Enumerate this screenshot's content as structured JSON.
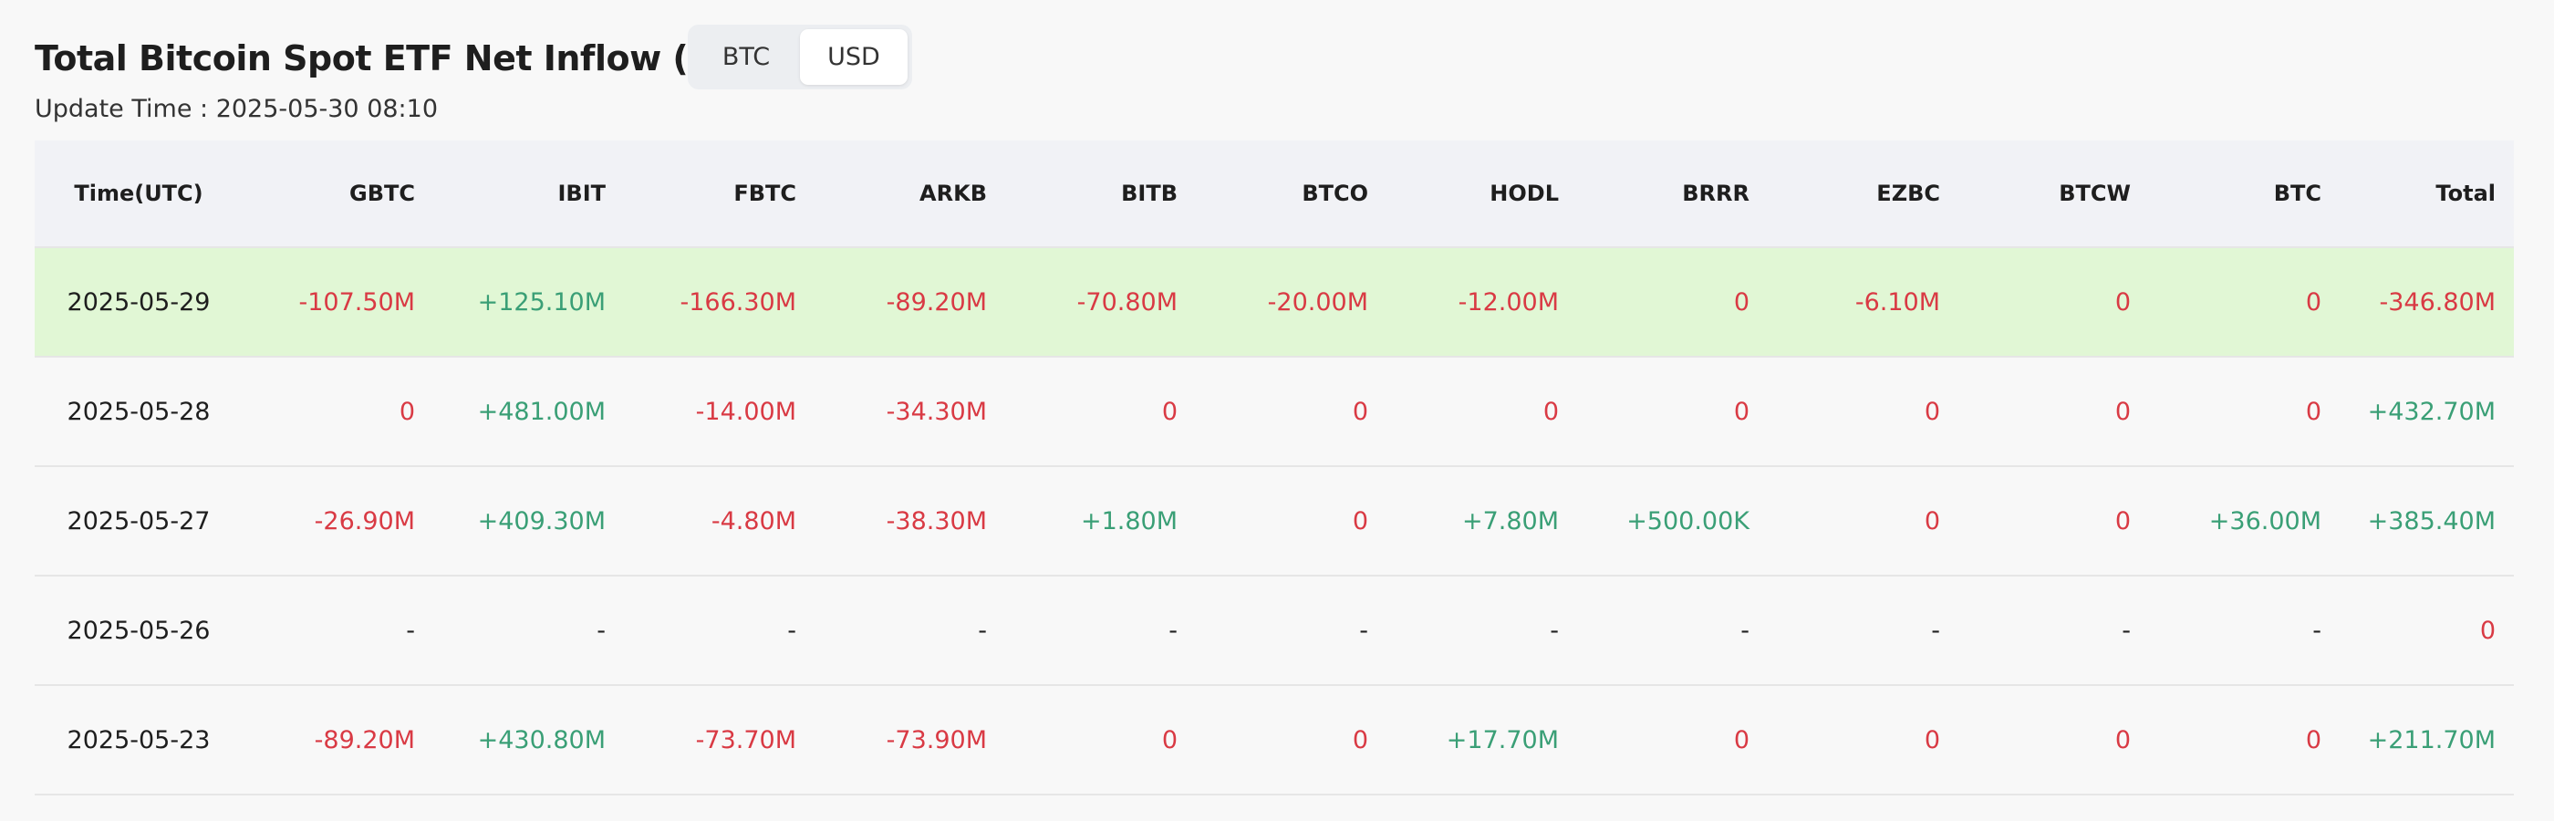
{
  "header": {
    "title": "Total Bitcoin Spot ETF Net Inflow (USD)",
    "update_time": "Update Time : 2025-05-30 08:10"
  },
  "toggle": {
    "options": [
      "BTC",
      "USD"
    ],
    "active": 1
  },
  "table": {
    "columns": [
      "Time(UTC)",
      "GBTC",
      "IBIT",
      "FBTC",
      "ARKB",
      "BITB",
      "BTCO",
      "HODL",
      "BRRR",
      "EZBC",
      "BTCW",
      "BTC",
      "Total"
    ],
    "highlight_row": 0,
    "rows": [
      [
        "2025-05-29",
        "-107.50M",
        "+125.10M",
        "-166.30M",
        "-89.20M",
        "-70.80M",
        "-20.00M",
        "-12.00M",
        "0",
        "-6.10M",
        "0",
        "0",
        "-346.80M"
      ],
      [
        "2025-05-28",
        "0",
        "+481.00M",
        "-14.00M",
        "-34.30M",
        "0",
        "0",
        "0",
        "0",
        "0",
        "0",
        "0",
        "+432.70M"
      ],
      [
        "2025-05-27",
        "-26.90M",
        "+409.30M",
        "-4.80M",
        "-38.30M",
        "+1.80M",
        "0",
        "+7.80M",
        "+500.00K",
        "0",
        "0",
        "+36.00M",
        "+385.40M"
      ],
      [
        "2025-05-26",
        "-",
        "-",
        "-",
        "-",
        "-",
        "-",
        "-",
        "-",
        "-",
        "-",
        "-",
        "0"
      ],
      [
        "2025-05-23",
        "-89.20M",
        "+430.80M",
        "-73.70M",
        "-73.90M",
        "0",
        "0",
        "+17.70M",
        "0",
        "0",
        "0",
        "0",
        "+211.70M"
      ]
    ]
  }
}
